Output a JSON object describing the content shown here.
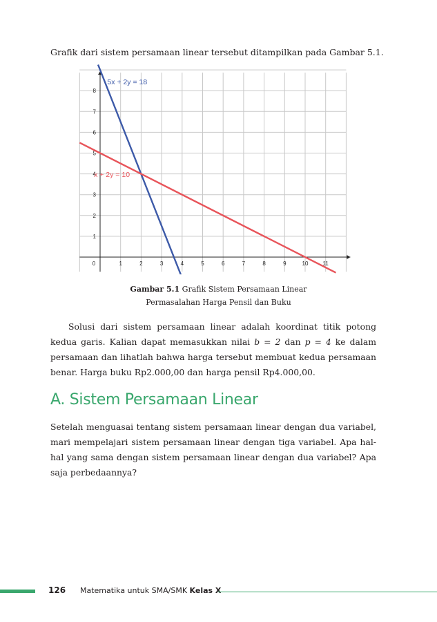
{
  "intro_text": "Grafik dari sistem persamaan linear tersebut ditampilkan pada Gambar 5.1.",
  "chart_data": {
    "type": "line",
    "x_ticks": [
      "0",
      "1",
      "2",
      "3",
      "4",
      "5",
      "6",
      "7",
      "8",
      "9",
      "10",
      "11"
    ],
    "y_ticks": [
      "1",
      "2",
      "3",
      "4",
      "5",
      "6",
      "7",
      "8"
    ],
    "xlim": [
      -1,
      12
    ],
    "ylim": [
      -0.7,
      9
    ],
    "grid": true,
    "series": [
      {
        "name": "5x + 2y = 18",
        "color": "#3d5aa8",
        "x": [
          0,
          3.6
        ],
        "y": [
          9,
          0
        ],
        "x_ext": [
          -0.1,
          3.95
        ],
        "y_ext": [
          9.25,
          -0.88
        ]
      },
      {
        "name": "x + 2y = 10",
        "color": "#e8545a",
        "x": [
          0,
          10
        ],
        "y": [
          5,
          0
        ],
        "x_ext": [
          -1,
          11.5
        ],
        "y_ext": [
          5.5,
          -0.75
        ]
      }
    ],
    "intersection": {
      "x": 2,
      "y": 4
    }
  },
  "caption": {
    "bold": "Gambar 5.1",
    "line1": "Grafik Sistem Persamaan Linear",
    "line2": "Permasalahan Harga Pensil dan Buku"
  },
  "paragraph1": {
    "part1": "Solusi dari sistem persamaan linear adalah koordinat titik potong kedua garis. Kalian dapat memasukkan nilai ",
    "math1": "b = 2",
    "part2": " dan ",
    "math2": "p = 4",
    "part3": " ke dalam persamaan dan lihatlah bahwa harga tersebut membuat kedua persamaan benar. Harga buku Rp2.000,00 dan harga pensil Rp4.000,00."
  },
  "section_heading": "A. Sistem Persamaan Linear",
  "paragraph2": "Setelah menguasai tentang sistem persamaan linear dengan dua variabel, mari mempelajari sistem persamaan linear dengan tiga variabel. Apa hal-hal yang sama dengan sistem persamaan linear dengan dua variabel? Apa saja perbedaannya?",
  "footer": {
    "page_number": "126",
    "book_title": "Matematika untuk SMA/SMK ",
    "book_class": "Kelas X"
  }
}
